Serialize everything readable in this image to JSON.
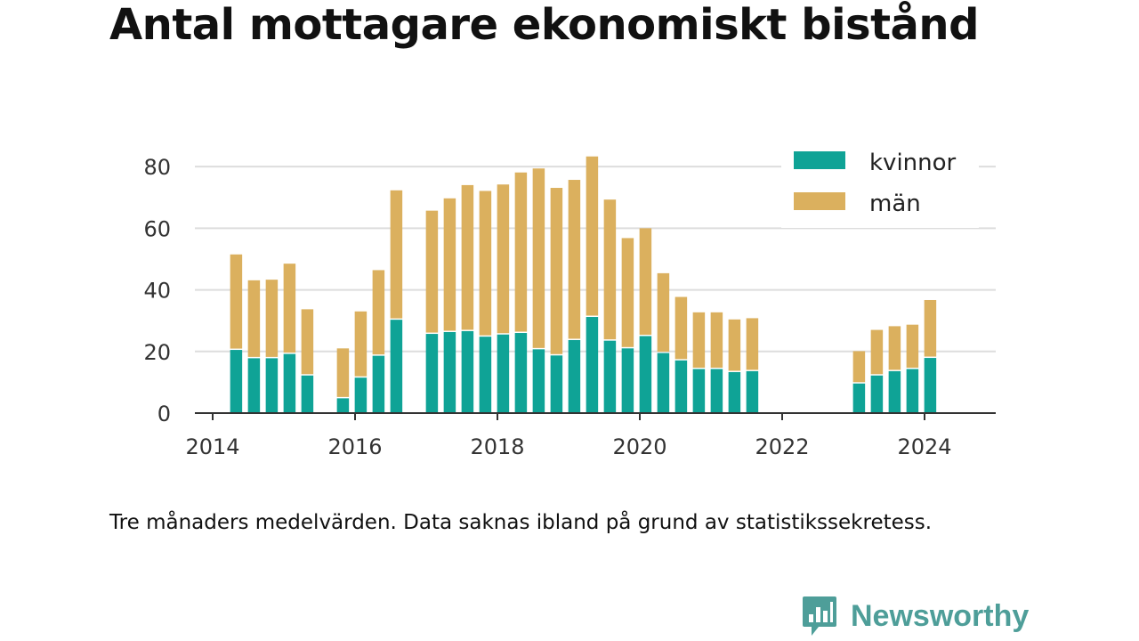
{
  "title": "Antal mottagare ekonomiskt bistånd",
  "note": "Tre månaders medelvärden. Data saknas ibland på grund av statistikssekretess.",
  "brand": {
    "name": "Newsworthy",
    "icon": "bar-chart-speech-bubble-icon",
    "color": "#4e9e99"
  },
  "chart_data": {
    "type": "bar",
    "stacked": true,
    "grid": true,
    "legend_position": "top-right",
    "xlim": [
      2013.75,
      2025.0
    ],
    "ylim": [
      0,
      89
    ],
    "x_ticks": [
      2014,
      2016,
      2018,
      2020,
      2022,
      2024
    ],
    "y_ticks": [
      0,
      20,
      40,
      60,
      80
    ],
    "x": [
      2014.33,
      2014.58,
      2014.83,
      2015.08,
      2015.33,
      2015.83,
      2016.08,
      2016.33,
      2016.58,
      2017.08,
      2017.33,
      2017.58,
      2017.83,
      2018.08,
      2018.33,
      2018.58,
      2018.83,
      2019.08,
      2019.33,
      2019.58,
      2019.83,
      2020.08,
      2020.33,
      2020.58,
      2020.83,
      2021.08,
      2021.33,
      2021.58,
      2023.08,
      2023.33,
      2023.58,
      2023.83,
      2024.08
    ],
    "series": [
      {
        "name": "kvinnor",
        "color": "#0fa396",
        "values": [
          20.5,
          17.8,
          17.8,
          19.2,
          12.2,
          4.8,
          11.5,
          18.6,
          30.3,
          25.7,
          26.3,
          26.6,
          24.8,
          25.5,
          26.0,
          20.7,
          18.7,
          23.7,
          31.2,
          23.5,
          21.0,
          25.0,
          19.5,
          17.1,
          14.3,
          14.3,
          13.3,
          13.6,
          9.6,
          12.2,
          13.6,
          14.3,
          17.9
        ]
      },
      {
        "name": "män",
        "color": "#dbb05e",
        "values": [
          31.0,
          25.3,
          25.5,
          29.3,
          21.5,
          16.2,
          21.5,
          27.8,
          42.0,
          40.0,
          43.4,
          47.4,
          47.3,
          48.7,
          52.1,
          58.7,
          54.4,
          52.0,
          52.1,
          45.8,
          35.8,
          35.0,
          25.9,
          20.6,
          18.4,
          18.4,
          17.1,
          17.2,
          10.5,
          14.8,
          14.6,
          14.4,
          18.8
        ]
      }
    ]
  }
}
